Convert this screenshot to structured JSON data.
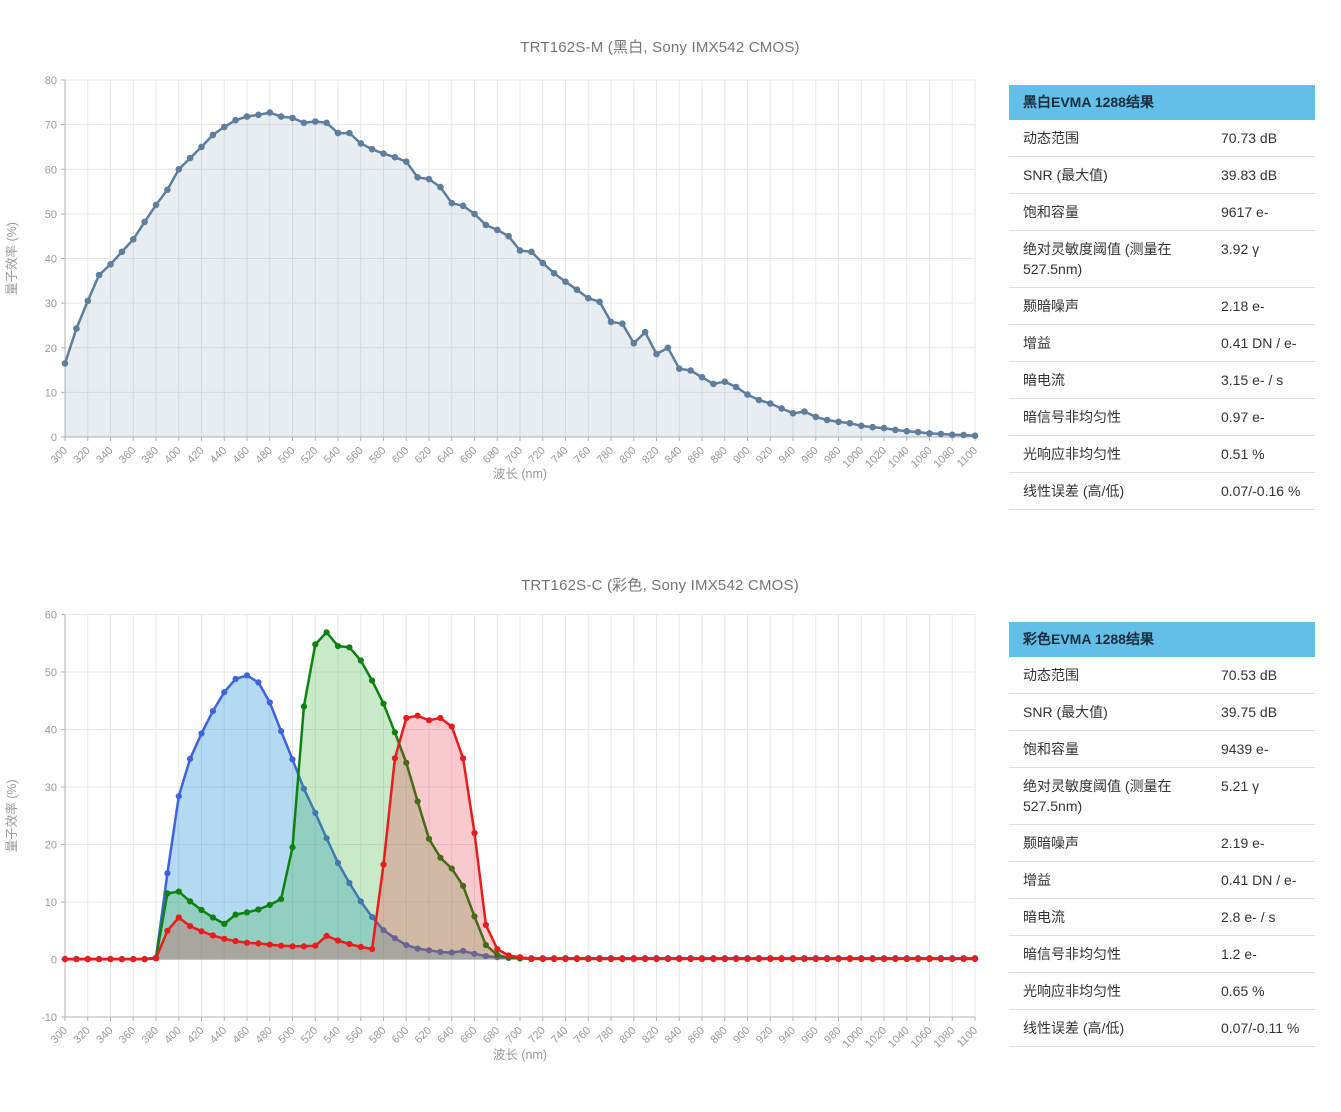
{
  "chart_data": [
    {
      "type": "area",
      "title": "TRT162S-M (黑白, Sony IMX542 CMOS)",
      "xlabel": "波长 (nm)",
      "ylabel": "量子效率 (%)",
      "xlim": [
        300,
        1100
      ],
      "xtick_step": 20,
      "ylim": [
        0,
        80
      ],
      "ytick_step": 10,
      "grid": true,
      "legend": "none",
      "x_start": 300,
      "x_step": 10,
      "series": [
        {
          "name": "量子效率",
          "color": "#5e7e9e",
          "fill": "rgba(95,125,160,0.14)",
          "values": [
            16.5,
            24.3,
            30.5,
            36.3,
            38.7,
            41.5,
            44.3,
            48.2,
            52,
            55.4,
            60,
            62.5,
            65,
            67.7,
            69.5,
            71,
            71.8,
            72.2,
            72.7,
            71.8,
            71.5,
            70.4,
            70.7,
            70.4,
            68.1,
            68.1,
            65.8,
            64.5,
            63.5,
            62.7,
            61.7,
            58.2,
            57.8,
            56,
            52.4,
            51.8,
            50,
            47.5,
            46.4,
            45,
            41.8,
            41.5,
            39,
            36.7,
            34.8,
            33,
            31.1,
            30.3,
            25.8,
            25.4,
            21,
            23.5,
            18.6,
            20,
            15.3,
            14.9,
            13.4,
            11.9,
            12.4,
            11.2,
            9.5,
            8.3,
            7.5,
            6.4,
            5.3,
            5.7,
            4.5,
            3.8,
            3.4,
            3.1,
            2.5,
            2.2,
            2.0,
            1.6,
            1.3,
            1.1,
            0.8,
            0.7,
            0.5,
            0.45,
            0.3
          ]
        }
      ]
    },
    {
      "type": "area",
      "title": "TRT162S-C (彩色, Sony IMX542 CMOS)",
      "xlabel": "波长 (nm)",
      "ylabel": "量子效率 (%)",
      "xlim": [
        300,
        1100
      ],
      "xtick_step": 20,
      "ylim": [
        -10,
        60
      ],
      "ytick_step": 10,
      "grid": true,
      "legend": "none",
      "x_start": 300,
      "x_step": 10,
      "series": [
        {
          "name": "蓝色通道",
          "color": "#3f63dc",
          "fill": "rgba(40,150,220,0.35)",
          "values": [
            0.1,
            0.1,
            0.1,
            0.1,
            0.1,
            0.1,
            0.1,
            0.1,
            0.3,
            15,
            28.4,
            34.9,
            39.3,
            43.2,
            46.5,
            48.8,
            49.4,
            48.2,
            44.7,
            39.7,
            34.8,
            29.7,
            25.5,
            21.1,
            16.8,
            13.3,
            10.1,
            7.4,
            5.1,
            3.7,
            2.5,
            1.9,
            1.6,
            1.3,
            1.2,
            1.5,
            1.0,
            0.6,
            0.4,
            0.3,
            0.25,
            0.25,
            0.25,
            0.25,
            0.25,
            0.25,
            0.25,
            0.25,
            0.25,
            0.25,
            0.25,
            0.25,
            0.25,
            0.25,
            0.25,
            0.25,
            0.25,
            0.25,
            0.25,
            0.25,
            0.25,
            0.25,
            0.25,
            0.25,
            0.25,
            0.25,
            0.25,
            0.25,
            0.25,
            0.25,
            0.25,
            0.25,
            0.25,
            0.25,
            0.25,
            0.25,
            0.25,
            0.25,
            0.25,
            0.25,
            0.25
          ]
        },
        {
          "name": "绿色通道",
          "color": "#0e820e",
          "fill": "rgba(60,180,60,0.28)",
          "values": [
            0.05,
            0.05,
            0.05,
            0.05,
            0.05,
            0.05,
            0.05,
            0.05,
            0.3,
            11.5,
            11.8,
            10.1,
            8.6,
            7.3,
            6.2,
            7.8,
            8.2,
            8.7,
            9.5,
            10.5,
            19.5,
            44,
            54.8,
            56.9,
            54.5,
            54.3,
            52,
            48.5,
            44.5,
            39.5,
            34.2,
            27.5,
            21,
            17.7,
            15.8,
            12.8,
            7.5,
            2.5,
            0.8,
            0.3,
            0.2,
            0.1,
            0.1,
            0.1,
            0.1,
            0.1,
            0.1,
            0.1,
            0.1,
            0.1,
            0.1,
            0.1,
            0.1,
            0.1,
            0.1,
            0.1,
            0.1,
            0.1,
            0.1,
            0.1,
            0.1,
            0.1,
            0.1,
            0.1,
            0.1,
            0.1,
            0.1,
            0.1,
            0.1,
            0.1,
            0.1,
            0.1,
            0.1,
            0.1,
            0.1,
            0.1,
            0.1,
            0.1,
            0.1,
            0.1,
            0.1
          ]
        },
        {
          "name": "红色通道",
          "color": "#e81c1c",
          "fill": "rgba(235,40,60,0.25)",
          "values": [
            0.05,
            0.05,
            0.05,
            0.05,
            0.05,
            0.05,
            0.05,
            0.05,
            0.2,
            5,
            7.3,
            5.8,
            4.9,
            4.2,
            3.6,
            3.2,
            2.9,
            2.8,
            2.6,
            2.4,
            2.3,
            2.3,
            2.4,
            4.1,
            3.3,
            2.7,
            2.2,
            1.8,
            16.5,
            35,
            42,
            42.4,
            41.6,
            42,
            40.5,
            35,
            22,
            6,
            1.8,
            0.7,
            0.4,
            0.1,
            0.1,
            0.1,
            0.1,
            0.1,
            0.1,
            0.1,
            0.1,
            0.1,
            0.1,
            0.1,
            0.1,
            0.1,
            0.1,
            0.1,
            0.1,
            0.1,
            0.1,
            0.1,
            0.1,
            0.1,
            0.1,
            0.1,
            0.1,
            0.1,
            0.1,
            0.1,
            0.1,
            0.1,
            0.1,
            0.1,
            0.1,
            0.1,
            0.1,
            0.1,
            0.1,
            0.1,
            0.1,
            0.1,
            0.1
          ]
        }
      ]
    }
  ],
  "tables": [
    {
      "header": "黑白EVMA 1288结果",
      "rows": [
        {
          "label": "动态范围",
          "value": "70.73 dB"
        },
        {
          "label": "SNR (最大值)",
          "value": "39.83 dB"
        },
        {
          "label": "饱和容量",
          "value": "9617 e-"
        },
        {
          "label": "绝对灵敏度阈值 (测量在 527.5nm)",
          "value": "3.92 γ"
        },
        {
          "label": "颞暗噪声",
          "value": "2.18 e-"
        },
        {
          "label": "增益",
          "value": "0.41 DN / e-"
        },
        {
          "label": "暗电流",
          "value": "3.15 e- / s"
        },
        {
          "label": "暗信号非均匀性",
          "value": "0.97 e-"
        },
        {
          "label": "光响应非均匀性",
          "value": "0.51 %"
        },
        {
          "label": "线性误差 (高/低)",
          "value": "0.07/-0.16 %"
        }
      ]
    },
    {
      "header": "彩色EVMA 1288结果",
      "rows": [
        {
          "label": "动态范围",
          "value": "70.53 dB"
        },
        {
          "label": "SNR (最大值)",
          "value": "39.75 dB"
        },
        {
          "label": "饱和容量",
          "value": "9439 e-"
        },
        {
          "label": "绝对灵敏度阈值 (测量在 527.5nm)",
          "value": "5.21 γ"
        },
        {
          "label": "颞暗噪声",
          "value": "2.19 e-"
        },
        {
          "label": "增益",
          "value": "0.41 DN / e-"
        },
        {
          "label": "暗电流",
          "value": "2.8 e- / s"
        },
        {
          "label": "暗信号非均匀性",
          "value": "1.2 e-"
        },
        {
          "label": "光响应非均匀性",
          "value": "0.65 %"
        },
        {
          "label": "线性误差 (高/低)",
          "value": "0.07/-0.11 %"
        }
      ]
    }
  ],
  "style": {
    "header_bg": "#62c0e8",
    "grid_color": "#e7e7e7",
    "axis_color": "#b3b3b3",
    "tick_label_color": "#999999",
    "title_color": "#757575",
    "row_border_color": "#dddddd"
  }
}
